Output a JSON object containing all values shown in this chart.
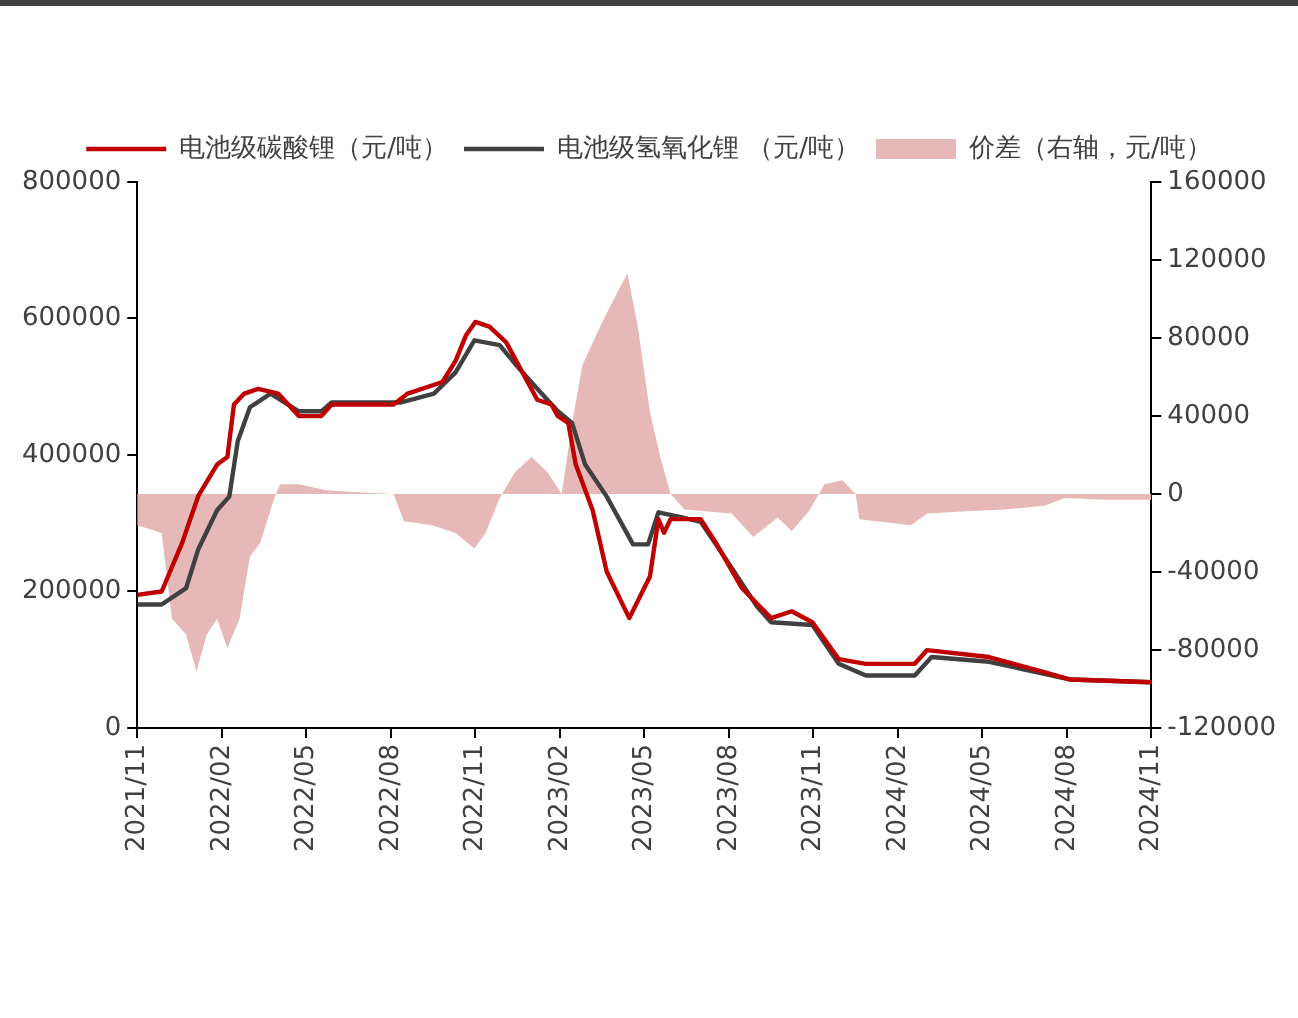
{
  "chart_data": {
    "type": "line",
    "legend": "top",
    "grid": false,
    "marker": "none",
    "line_style": "solid",
    "xlim": [
      "2021-11",
      "2024-11"
    ],
    "xticks": [
      {
        "value": "2021-11",
        "label": "2021/11"
      },
      {
        "value": "2022-02",
        "label": "2022/02"
      },
      {
        "value": "2022-05",
        "label": "2022/05"
      },
      {
        "value": "2022-08",
        "label": "2022/08"
      },
      {
        "value": "2022-11",
        "label": "2022/11"
      },
      {
        "value": "2023-02",
        "label": "2023/02"
      },
      {
        "value": "2023-05",
        "label": "2023/05"
      },
      {
        "value": "2023-08",
        "label": "2023/08"
      },
      {
        "value": "2023-11",
        "label": "2023/11"
      },
      {
        "value": "2024-02",
        "label": "2024/02"
      },
      {
        "value": "2024-05",
        "label": "2024/05"
      },
      {
        "value": "2024-08",
        "label": "2024/08"
      },
      {
        "value": "2024-11",
        "label": "2024/11"
      }
    ],
    "ylim": [
      0,
      800000
    ],
    "yticks": [
      0,
      200000,
      400000,
      600000,
      800000
    ],
    "y2lim": [
      -120000,
      160000
    ],
    "y2ticks": [
      -120000,
      -80000,
      -40000,
      0,
      40000,
      80000,
      120000,
      160000
    ],
    "series": [
      {
        "name": "价差（右轴，元/吨）",
        "type": "area",
        "axis": "y2",
        "color": "#e6b8b7",
        "x": [
          "2021-11-01",
          "2021-11-27",
          "2021-12-08",
          "2021-12-23",
          "2022-01-04",
          "2022-01-15",
          "2022-01-26",
          "2022-02-07",
          "2022-02-20",
          "2022-03-01",
          "2022-03-12",
          "2022-03-27",
          "2022-04-03",
          "2022-04-23",
          "2022-05-21",
          "2022-06-20",
          "2022-08-04",
          "2022-08-15",
          "2022-09-15",
          "2022-10-10",
          "2022-10-30",
          "2022-11-12",
          "2022-11-27",
          "2022-12-13",
          "2022-12-31",
          "2023-01-18",
          "2023-02-03",
          "2023-02-14",
          "2023-02-25",
          "2023-03-17",
          "2023-04-04",
          "2023-04-13",
          "2023-04-24",
          "2023-05-07",
          "2023-05-18",
          "2023-05-29",
          "2023-06-14",
          "2023-08-04",
          "2023-08-27",
          "2023-09-23",
          "2023-10-08",
          "2023-10-26",
          "2023-11-13",
          "2023-12-02",
          "2023-12-16",
          "2023-12-20",
          "2024-02-15",
          "2024-03-02",
          "2024-04-09",
          "2024-05-24",
          "2024-07-07",
          "2024-07-29",
          "2024-09-12",
          "2024-11-01"
        ],
        "values": [
          -16000,
          -20000,
          -64000,
          -72000,
          -91000,
          -72000,
          -64000,
          -79000,
          -64000,
          -32000,
          -25000,
          -2000,
          5000,
          5000,
          2000,
          1000,
          0,
          -14000,
          -16000,
          -20000,
          -28000,
          -20000,
          -2000,
          11000,
          19000,
          11000,
          0,
          36000,
          66000,
          89000,
          105000,
          113000,
          86000,
          42000,
          19000,
          0,
          -8000,
          -10000,
          -22000,
          -12000,
          -19000,
          -9000,
          5000,
          7000,
          0,
          -13000,
          -16000,
          -10000,
          -9000,
          -8000,
          -6000,
          -2000,
          -3000,
          -3000
        ]
      },
      {
        "name": "电池级碳酸锂（元/吨）",
        "color": "#c00000",
        "x": [
          "2021-11-01",
          "2021-11-27",
          "2021-12-19",
          "2022-01-06",
          "2022-01-26",
          "2022-02-07",
          "2022-02-14",
          "2022-02-25",
          "2022-03-10",
          "2022-04-01",
          "2022-04-23",
          "2022-05-17",
          "2022-05-28",
          "2022-08-04",
          "2022-08-19",
          "2022-09-26",
          "2022-10-10",
          "2022-10-21",
          "2022-11-01",
          "2022-11-16",
          "2022-12-04",
          "2022-12-24",
          "2023-01-07",
          "2023-01-22",
          "2023-01-29",
          "2023-02-10",
          "2023-02-18",
          "2023-03-06",
          "2023-03-21",
          "2023-04-15",
          "2023-05-07",
          "2023-05-16",
          "2023-05-22",
          "2023-05-29",
          "2023-07-01",
          "2023-07-17",
          "2023-08-15",
          "2023-09-16",
          "2023-10-08",
          "2023-10-30",
          "2023-11-28",
          "2023-12-27",
          "2024-02-19",
          "2024-03-02",
          "2024-05-08",
          "2024-07-01",
          "2024-08-05",
          "2024-11-01"
        ],
        "values": [
          195000,
          200000,
          272000,
          340000,
          386000,
          397000,
          474000,
          490000,
          497000,
          490000,
          457000,
          457000,
          474000,
          474000,
          490000,
          507000,
          538000,
          575000,
          595000,
          588000,
          565000,
          514000,
          481000,
          474000,
          457000,
          447000,
          386000,
          319000,
          229000,
          161000,
          222000,
          306000,
          286000,
          306000,
          306000,
          272000,
          205000,
          161000,
          171000,
          155000,
          101000,
          94000,
          94000,
          114000,
          104000,
          84000,
          71000,
          67000
        ]
      },
      {
        "name": "电池级氢氧化锂 （元/吨）",
        "color": "#404040",
        "x": [
          "2021-11-01",
          "2021-11-27",
          "2021-12-23",
          "2022-01-06",
          "2022-01-26",
          "2022-02-09",
          "2022-02-18",
          "2022-03-01",
          "2022-03-23",
          "2022-04-23",
          "2022-05-17",
          "2022-05-28",
          "2022-08-12",
          "2022-09-17",
          "2022-10-10",
          "2022-10-30",
          "2022-11-27",
          "2022-12-15",
          "2023-01-07",
          "2023-01-29",
          "2023-02-14",
          "2023-02-28",
          "2023-03-21",
          "2023-04-19",
          "2023-05-05",
          "2023-05-16",
          "2023-06-10",
          "2023-07-01",
          "2023-08-02",
          "2023-09-01",
          "2023-09-16",
          "2023-10-30",
          "2023-11-28",
          "2023-12-27",
          "2024-02-19",
          "2024-03-07",
          "2024-05-08",
          "2024-08-05",
          "2024-11-01"
        ],
        "values": [
          181000,
          181000,
          205000,
          262000,
          319000,
          339000,
          420000,
          470000,
          490000,
          464000,
          464000,
          477000,
          477000,
          490000,
          521000,
          568000,
          561000,
          531000,
          497000,
          464000,
          447000,
          386000,
          339000,
          269000,
          269000,
          316000,
          309000,
          302000,
          239000,
          178000,
          155000,
          151000,
          94000,
          77000,
          77000,
          104000,
          97000,
          71000,
          67000
        ]
      }
    ]
  }
}
